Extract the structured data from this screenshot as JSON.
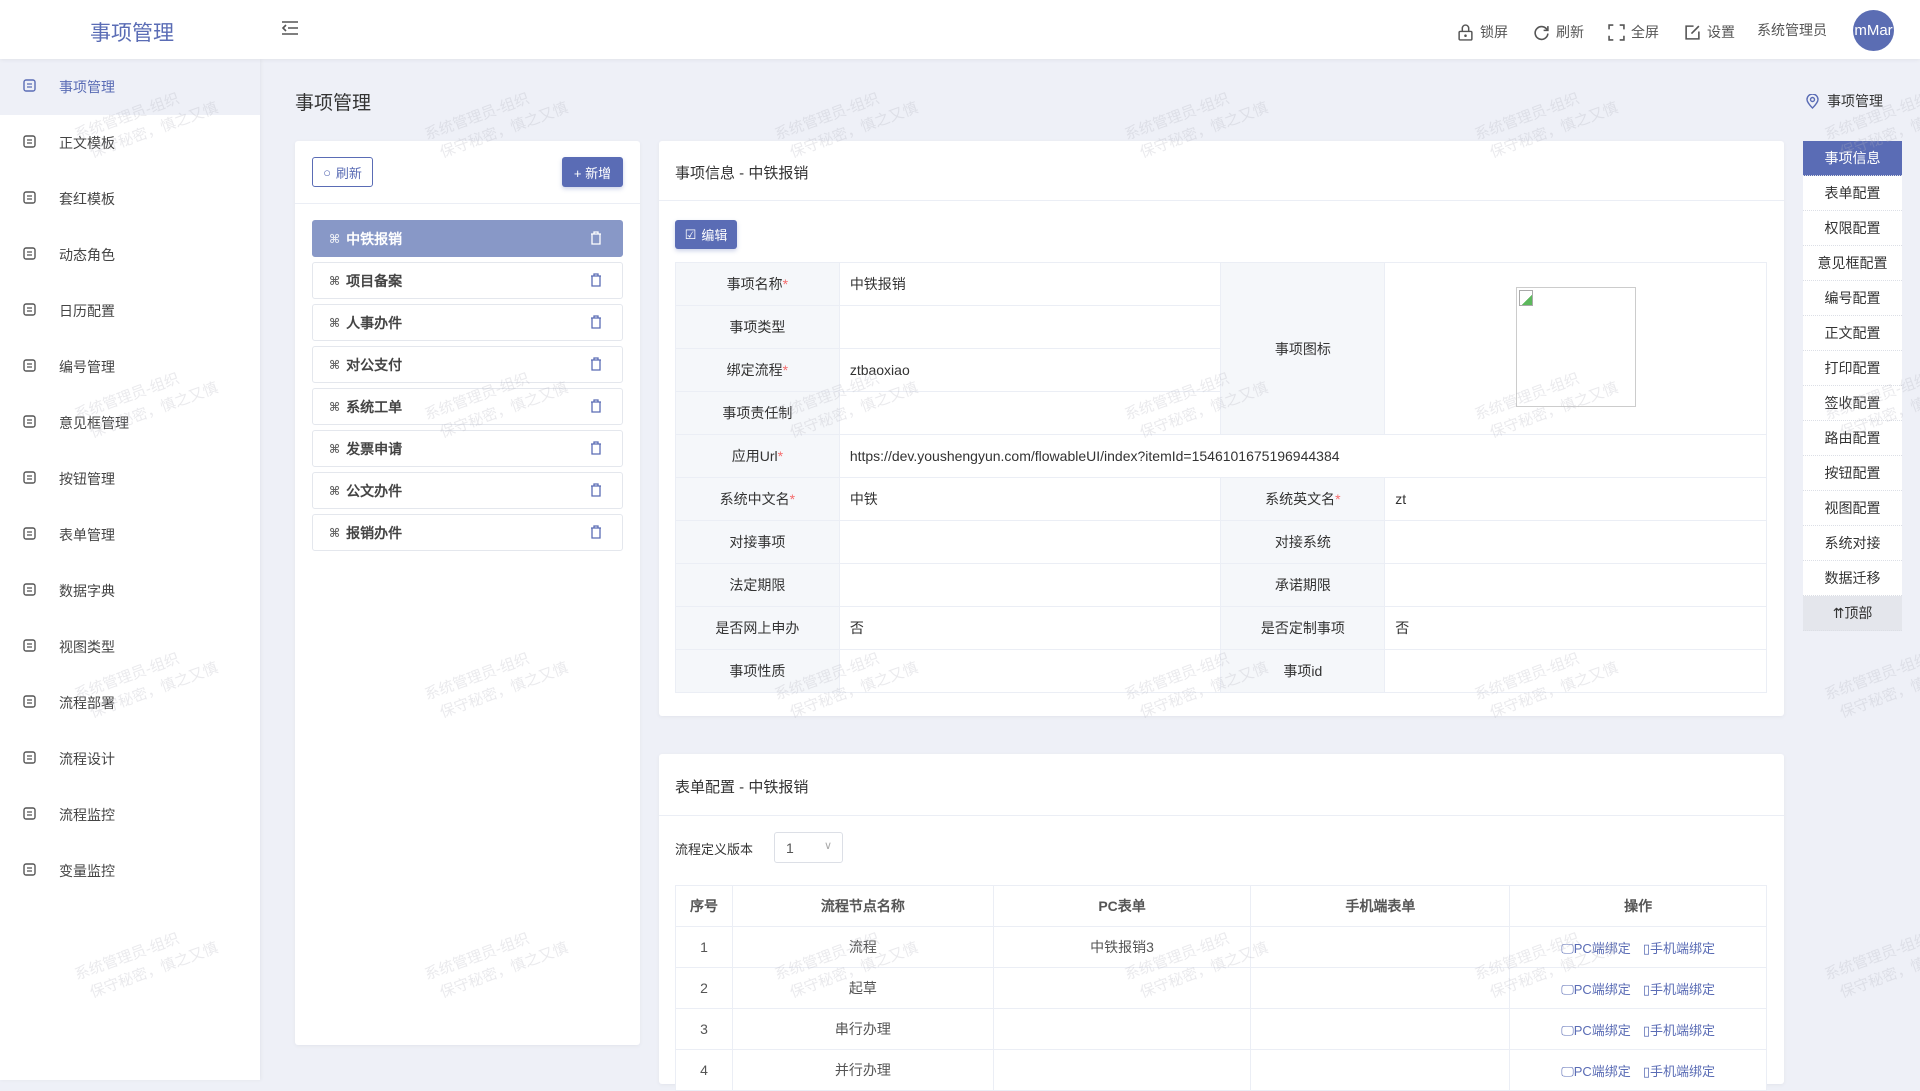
{
  "header": {
    "app_title": "事项管理",
    "actions": [
      {
        "label": "锁屏",
        "icon": "lock-icon"
      },
      {
        "label": "刷新",
        "icon": "refresh-icon"
      },
      {
        "label": "全屏",
        "icon": "fullscreen-icon"
      },
      {
        "label": "设置",
        "icon": "edit-icon"
      }
    ],
    "user": "系统管理员",
    "avatar": "mMar"
  },
  "sidebar": {
    "items": [
      {
        "label": "事项管理",
        "active": true
      },
      {
        "label": "正文模板"
      },
      {
        "label": "套红模板"
      },
      {
        "label": "动态角色"
      },
      {
        "label": "日历配置"
      },
      {
        "label": "编号管理"
      },
      {
        "label": "意见框管理"
      },
      {
        "label": "按钮管理"
      },
      {
        "label": "表单管理"
      },
      {
        "label": "数据字典"
      },
      {
        "label": "视图类型"
      },
      {
        "label": "流程部署"
      },
      {
        "label": "流程设计"
      },
      {
        "label": "流程监控"
      },
      {
        "label": "变量监控"
      }
    ]
  },
  "page": {
    "title": "事项管理",
    "breadcrumb": "事项管理"
  },
  "list": {
    "refresh_label": "刷新",
    "add_label": "+ 新增",
    "items": [
      "中铁报销",
      "项目备案",
      "人事办件",
      "对公支付",
      "系统工单",
      "发票申请",
      "公文办件",
      "报销办件"
    ]
  },
  "info": {
    "title": "事项信息 - 中铁报销",
    "edit_label": "编辑",
    "fields": {
      "name_label": "事项名称",
      "name": "中铁报销",
      "type_label": "事项类型",
      "type": "",
      "flow_label": "绑定流程",
      "flow": "ztbaoxiao",
      "duty_label": "事项责任制",
      "duty": "",
      "icon_label": "事项图标",
      "url_label": "应用Url",
      "url": "https://dev.youshengyun.com/flowableUI/index?itemId=1546101675196944384",
      "cn_label": "系统中文名",
      "cn": "中铁",
      "en_label": "系统英文名",
      "en": "zt",
      "dock_item_label": "对接事项",
      "dock_item": "",
      "dock_sys_label": "对接系统",
      "dock_sys": "",
      "legal_label": "法定期限",
      "legal": "",
      "promise_label": "承诺期限",
      "promise": "",
      "online_label": "是否网上申办",
      "online": "否",
      "custom_label": "是否定制事项",
      "custom": "否",
      "nature_label": "事项性质",
      "nature": "",
      "id_label": "事项id",
      "id": ""
    }
  },
  "form": {
    "title": "表单配置 - 中铁报销",
    "version_label": "流程定义版本",
    "version": "1",
    "columns": [
      "序号",
      "流程节点名称",
      "PC表单",
      "手机端表单",
      "操作"
    ],
    "rows": [
      {
        "no": "1",
        "node": "流程",
        "pc": "中铁报销3",
        "mobile": ""
      },
      {
        "no": "2",
        "node": "起草",
        "pc": "",
        "mobile": ""
      },
      {
        "no": "3",
        "node": "串行办理",
        "pc": "",
        "mobile": ""
      },
      {
        "no": "4",
        "node": "并行办理",
        "pc": "",
        "mobile": ""
      }
    ],
    "pc_bind": "PC端绑定",
    "mobile_bind": "手机端绑定"
  },
  "right_nav": {
    "items": [
      "事项信息",
      "表单配置",
      "权限配置",
      "意见框配置",
      "编号配置",
      "正文配置",
      "打印配置",
      "签收配置",
      "路由配置",
      "按钮配置",
      "视图配置",
      "系统对接",
      "数据迁移"
    ],
    "top_label": "⇈顶部"
  },
  "watermark": [
    "系统管理员-组织",
    "保守秘密，慎之又慎"
  ],
  "colors": {
    "primary": "#5a6cb5",
    "selected_item": "#8898c7",
    "background": "#eef0f7"
  }
}
